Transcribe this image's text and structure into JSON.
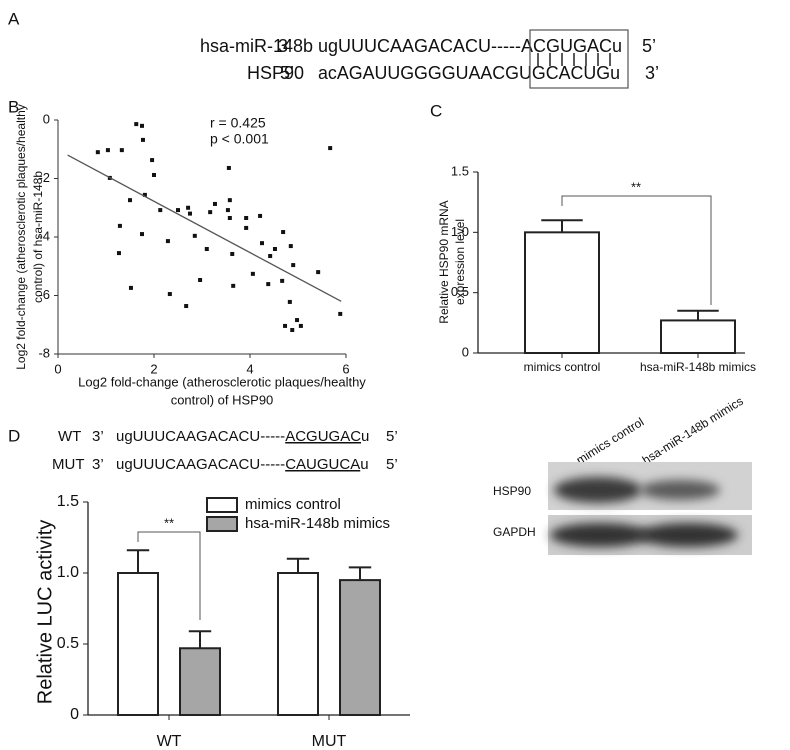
{
  "panel_a": {
    "label": "A",
    "rows": [
      {
        "name": "hsa-miR-148b",
        "end_left": "3’",
        "sequence": "ugUUUCAAGACACU-----ACGUGACu",
        "end_right": "5’"
      },
      {
        "name": "HSP90",
        "end_left": "5’",
        "sequence": "acAGAUUGGGGUAACGUGCACUGu",
        "end_right": "3’"
      }
    ]
  },
  "panel_d": {
    "label": "D",
    "rows": [
      {
        "name": "WT",
        "end_left": "3’",
        "sequence": [
          "ugUUUCAAGACACU-----",
          "ACGUGAC",
          "u"
        ],
        "end_right": "5’"
      },
      {
        "name": "MUT",
        "end_left": "3’",
        "sequence": [
          "ugUUUCAAGACACU-----",
          "CAUGUCA",
          "u"
        ],
        "end_right": "5’"
      }
    ]
  },
  "blot": {
    "columns": [
      "mimics control",
      "hsa-miR-148b mimics"
    ],
    "rows": [
      "HSP90",
      "GAPDH"
    ]
  },
  "chart_data": [
    {
      "type": "scatter",
      "panel_label": "B",
      "xlabel": [
        "Log2 fold-change (atherosclerotic plaques/healthy",
        "control) of HSP90"
      ],
      "ylabel": [
        "Log2 fold-change (atherosclerotic plaques/healthy",
        "control) of hsa-miR-148b"
      ],
      "annotations": [
        "r = 0.425",
        "p < 0.001"
      ],
      "color": "#111111",
      "x": [
        0.83,
        1.04,
        1.08,
        1.33,
        1.63,
        1.75,
        1.77,
        1.96,
        2.0,
        1.5,
        1.29,
        1.75,
        1.27,
        1.52,
        1.81,
        2.13,
        2.29,
        2.33,
        2.5,
        2.71,
        2.75,
        2.67,
        2.85,
        2.96,
        3.1,
        3.17,
        3.27,
        3.54,
        3.56,
        3.58,
        3.58,
        3.63,
        3.65,
        3.92,
        3.92,
        4.06,
        4.21,
        4.25,
        4.38,
        4.42,
        4.52,
        4.67,
        4.69,
        4.73,
        4.83,
        4.85,
        4.9,
        4.98,
        5.06,
        4.88,
        5.67,
        5.42,
        5.88
      ],
      "y": [
        -1.1,
        -1.03,
        -1.98,
        -1.03,
        -0.14,
        -0.2,
        -0.68,
        -1.37,
        -1.88,
        -2.74,
        -3.62,
        -3.9,
        -4.55,
        -5.74,
        -2.56,
        -3.08,
        -4.14,
        -5.95,
        -3.08,
        -3.0,
        -3.2,
        -6.36,
        -3.96,
        -5.47,
        -4.41,
        -3.15,
        -2.87,
        -3.08,
        -1.64,
        -2.74,
        -3.35,
        -4.58,
        -5.67,
        -3.35,
        -3.69,
        -5.26,
        -3.28,
        -4.21,
        -5.61,
        -4.65,
        -4.41,
        -5.5,
        -3.83,
        -7.04,
        -6.22,
        -4.31,
        -4.96,
        -6.84,
        -7.04,
        -7.18,
        -0.96,
        -5.2,
        -6.63
      ],
      "trendline": {
        "x": [
          0.2,
          5.9
        ],
        "y": [
          -1.2,
          -6.2
        ]
      },
      "xlim": [
        0,
        6
      ],
      "ylim": [
        -8,
        0
      ],
      "xticks": [
        0,
        2,
        4,
        6
      ],
      "yticks": [
        0,
        -2,
        -4,
        -6,
        -8
      ]
    },
    {
      "type": "bar",
      "panel_label": "C",
      "ylabel": [
        "Relative HSP90 mRNA",
        "expression level"
      ],
      "categories": [
        "mimics control",
        "hsa-miR-148b mimics"
      ],
      "series": [
        {
          "color": "#ffffff",
          "values": [
            1.0,
            0.27
          ],
          "errors": [
            0.1,
            0.08
          ]
        }
      ],
      "significance": "**",
      "ylim": [
        0,
        1.5
      ],
      "yticks": [
        0,
        0.5,
        {
          "value": 1,
          "label": "1.0"
        },
        1.5
      ]
    },
    {
      "type": "bar",
      "ylabel": [
        "Relative LUC activity"
      ],
      "categories": [
        "WT",
        "MUT"
      ],
      "series": [
        {
          "name": "mimics control",
          "color": "#ffffff",
          "values": [
            1.0,
            1.0
          ],
          "errors": [
            0.16,
            0.1
          ]
        },
        {
          "name": "hsa-miR-148b mimics",
          "color": "#a6a6a6",
          "values": [
            0.47,
            0.95
          ],
          "errors": [
            0.12,
            0.09
          ]
        }
      ],
      "significance": "**",
      "ylim": [
        0,
        1.5
      ],
      "yticks": [
        0,
        0.5,
        {
          "value": 1,
          "label": "1.0"
        },
        1.5
      ]
    }
  ]
}
